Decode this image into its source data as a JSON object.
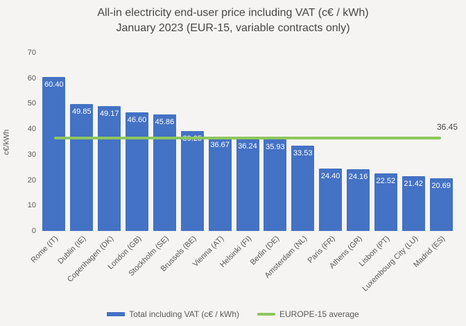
{
  "title": {
    "line1": "All-in electricity end-user price including VAT (c€ / kWh)",
    "line2": "January 2023 (EUR-15, variable contracts only)"
  },
  "chart_data": {
    "type": "bar",
    "title": "All-in electricity end-user price including VAT (c€ / kWh) January 2023 (EUR-15, variable contracts only)",
    "categories": [
      "Rome (IT)",
      "Dublin (IE)",
      "Copenhagen (DK)",
      "London (GB)",
      "Stockholm (SE)",
      "Brussels (BE)",
      "Vienna (AT)",
      "Helsinki (FI)",
      "Berlin (DE)",
      "Amsterdam (NL)",
      "Paris (FR)",
      "Athens (GR)",
      "Lisbon (PT)",
      "Luxembourg City (LU)",
      "Madrid (ES)"
    ],
    "values": [
      60.4,
      49.85,
      49.17,
      46.6,
      45.86,
      39.25,
      36.67,
      36.24,
      35.93,
      33.53,
      24.4,
      24.16,
      22.52,
      21.42,
      20.69
    ],
    "average": 36.45,
    "average_label": "36.45",
    "xlabel": "",
    "ylabel": "c€/kWh",
    "ylim": [
      0,
      70
    ],
    "yticks": [
      0,
      10,
      20,
      30,
      40,
      50,
      60,
      70
    ],
    "grid": false,
    "legend_position": "bottom",
    "bar_color": "#4472C4",
    "line_color": "#8CC65C",
    "legend": [
      {
        "label": "Total including VAT (c€ / kWh)",
        "type": "bar",
        "color": "#4472C4"
      },
      {
        "label": "EUROPE-15 average",
        "type": "line",
        "color": "#8CC65C"
      }
    ]
  }
}
